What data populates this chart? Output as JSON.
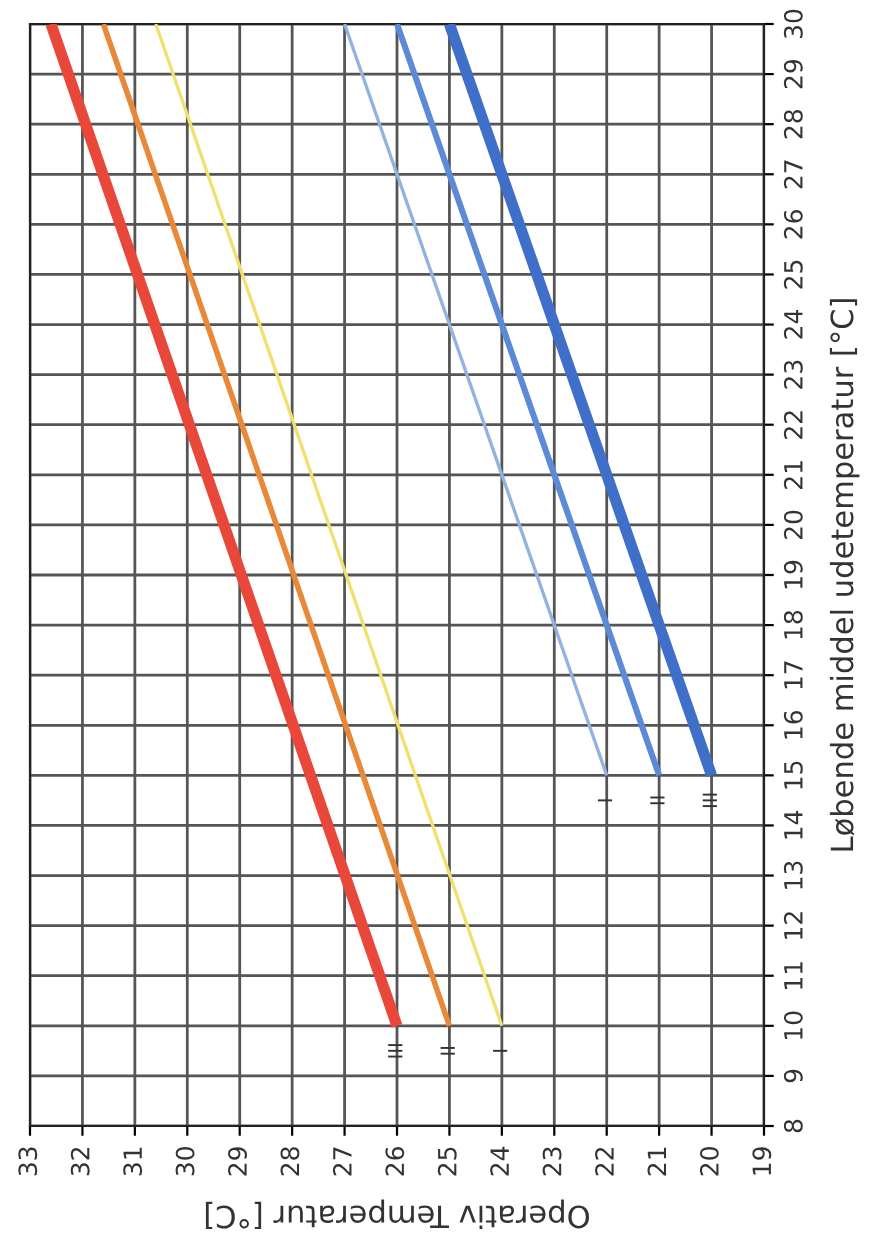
{
  "chart_data": {
    "type": "line",
    "xlabel": "Operativ Temperatur [°C]",
    "ylabel": "Løbende middel udetemperatur [°C]",
    "xlim": [
      33,
      19
    ],
    "xticks": [
      33,
      32,
      31,
      30,
      29,
      28,
      27,
      26,
      25,
      24,
      23,
      22,
      21,
      20,
      19
    ],
    "ylim": [
      8,
      30
    ],
    "yticks": [
      8,
      9,
      10,
      11,
      12,
      13,
      14,
      15,
      16,
      17,
      18,
      19,
      20,
      21,
      22,
      23,
      24,
      25,
      26,
      27,
      28,
      29,
      30
    ],
    "grid": true,
    "legend": false,
    "marker": "none",
    "line_style": "solid",
    "series": [
      {
        "color": "#e8473a",
        "x": [
          26,
          32.6
        ],
        "values": [
          10,
          30
        ]
      },
      {
        "color": "#e8893a",
        "x": [
          25,
          31.6
        ],
        "values": [
          10,
          30
        ]
      },
      {
        "color": "#f0e070",
        "x": [
          24,
          30.6
        ],
        "values": [
          10,
          30
        ]
      },
      {
        "color": "#92b2e2",
        "x": [
          22,
          27
        ],
        "values": [
          15,
          30
        ]
      },
      {
        "color": "#5b8ad6",
        "x": [
          21,
          26
        ],
        "values": [
          15,
          30
        ]
      },
      {
        "color": "#3f6fc8",
        "x": [
          20,
          25
        ],
        "values": [
          15,
          30
        ]
      }
    ],
    "annotations": [
      {
        "text": "III",
        "x": 26,
        "y": 10
      },
      {
        "text": "II",
        "x": 25,
        "y": 10
      },
      {
        "text": "I",
        "x": 24,
        "y": 10
      },
      {
        "text": "I",
        "x": 22,
        "y": 15
      },
      {
        "text": "II",
        "x": 21,
        "y": 15
      },
      {
        "text": "III",
        "x": 20,
        "y": 15
      }
    ]
  }
}
